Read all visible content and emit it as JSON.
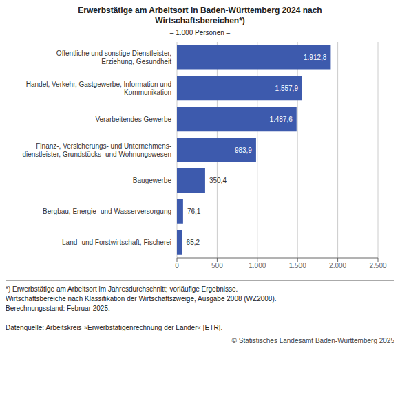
{
  "chart_data": {
    "type": "bar",
    "orientation": "horizontal",
    "title": "Erwerbstätige am Arbeitsort in Baden-Württemberg 2024 nach\nWirtschaftsbereichen*)",
    "subtitle": "– 1.000 Personen –",
    "categories": [
      "Land- und Forstwirtschaft, Fischerei",
      "Bergbau, Energie- und Wasserversorgung",
      "Baugewerbe",
      "Finanz-, Versicherungs- und Unternehmens-\ndienstleister, Grundstücks- und Wohnungswesen",
      "Verarbeitendes Gewerbe",
      "Handel, Verkehr, Gastgewerbe, Information und\nKommunikation",
      "Öffentliche und sonstige Dienstleister,\nErziehung, Gesundheit"
    ],
    "values": [
      65.2,
      76.1,
      350.4,
      983.9,
      1487.6,
      1557.9,
      1912.8
    ],
    "value_labels": [
      "65,2",
      "76,1",
      "350,4",
      "983,9",
      "1.487,6",
      "1.557,9",
      "1.912,8"
    ],
    "data_labels": true,
    "color": "#3d5aad",
    "xlim": [
      0,
      2500
    ],
    "xticks": [
      0,
      500,
      {
        "value": 1000,
        "label": "1.000"
      },
      {
        "value": 1500,
        "label": "1.500"
      },
      {
        "value": 2000,
        "label": "2.000"
      },
      {
        "value": 2500,
        "label": "2.500"
      }
    ],
    "grid": true,
    "annotations": [
      "*) Erwerbstätige am Arbeitsort im Jahresdurchschnitt; vorläufige Ergebnisse.",
      "Wirtschaftsbereiche nach Klassifikation der Wirtschaftszweige, Ausgabe 2008 (WZ2008).",
      "Berechnungsstand: Februar 2025.",
      "Datenquelle: Arbeitskreis »Erwerbs­tätigenrechnung der Länder« [ETR].",
      "© Statistisches Landesamt Baden-Württemberg 2025"
    ]
  }
}
